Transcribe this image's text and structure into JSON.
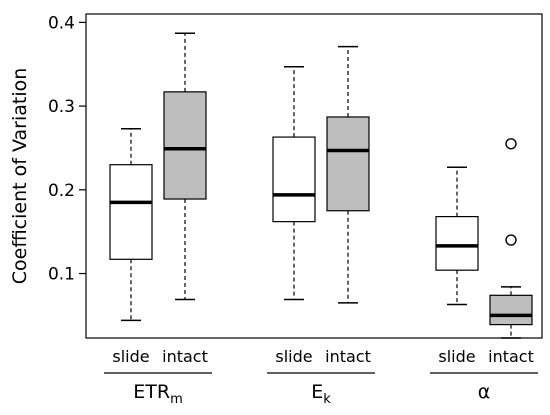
{
  "chart_data": {
    "type": "box",
    "xlabel": "",
    "ylabel": "Coefficient of Variation",
    "ylim": [
      0.023,
      0.41
    ],
    "y_ticks": [
      0.1,
      0.2,
      0.3,
      0.4
    ],
    "y_tick_labels": [
      "0.1",
      "0.2",
      "0.3",
      "0.4"
    ],
    "grid": false,
    "legend": "none",
    "fill_colors": {
      "slide": "#ffffff",
      "intact": "#bebebe"
    },
    "groups": [
      {
        "label": "ETR",
        "label_sub": "m",
        "boxes": [
          {
            "name": "slide",
            "min": 0.044,
            "q1": 0.117,
            "median": 0.185,
            "q3": 0.23,
            "max": 0.273,
            "outliers": []
          },
          {
            "name": "intact",
            "min": 0.069,
            "q1": 0.189,
            "median": 0.249,
            "q3": 0.317,
            "max": 0.387,
            "outliers": []
          }
        ]
      },
      {
        "label": "E",
        "label_sub": "k",
        "boxes": [
          {
            "name": "slide",
            "min": 0.069,
            "q1": 0.162,
            "median": 0.194,
            "q3": 0.263,
            "max": 0.347,
            "outliers": []
          },
          {
            "name": "intact",
            "min": 0.065,
            "q1": 0.175,
            "median": 0.247,
            "q3": 0.287,
            "max": 0.371,
            "outliers": []
          }
        ]
      },
      {
        "label": "α",
        "label_sub": "",
        "boxes": [
          {
            "name": "slide",
            "min": 0.063,
            "q1": 0.104,
            "median": 0.133,
            "q3": 0.168,
            "max": 0.227,
            "outliers": []
          },
          {
            "name": "intact",
            "min": 0.023,
            "q1": 0.039,
            "median": 0.05,
            "q3": 0.074,
            "max": 0.084,
            "outliers": [
              0.14,
              0.255
            ]
          }
        ]
      }
    ]
  }
}
